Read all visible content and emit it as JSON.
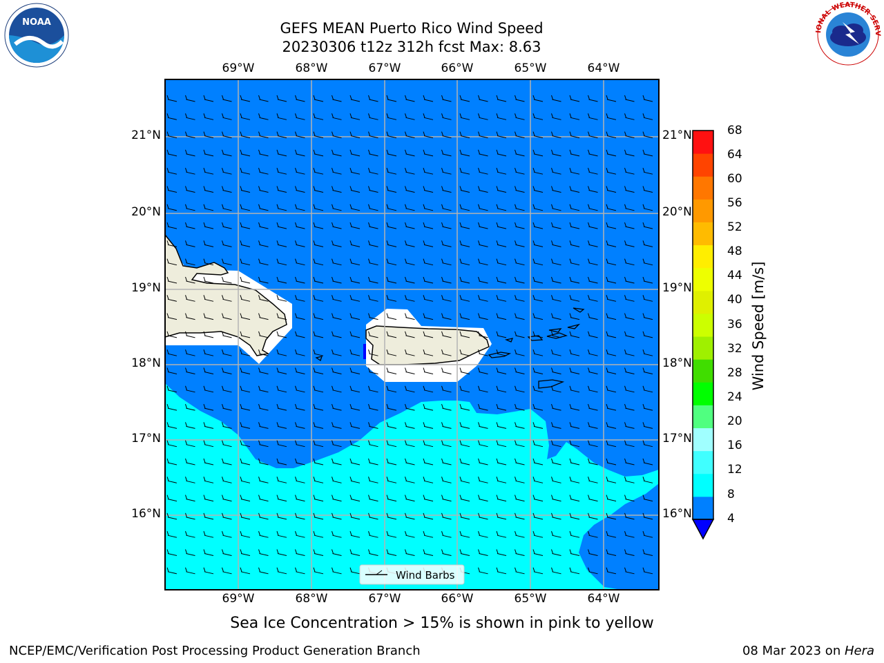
{
  "header": {
    "title_line1": "GEFS MEAN Puerto Rico Wind Speed",
    "title_line2": "20230306 t12z 312h fcst   Max: 8.63"
  },
  "logos": {
    "left_text": "NOAA",
    "right_text": "NATIONAL WEATHER SERVICE"
  },
  "map": {
    "lon_ticks": [
      "69°W",
      "68°W",
      "67°W",
      "66°W",
      "65°W",
      "64°W"
    ],
    "lat_ticks": [
      "21°N",
      "20°N",
      "19°N",
      "18°N",
      "17°N",
      "16°N"
    ],
    "legend_label": "Wind Barbs",
    "colors": {
      "ocean_4_8": "#0080ff",
      "ocean_8_12": "#00ffff",
      "land": "#eeeddc",
      "mask": "#ffffff",
      "grid": "#b3b3b3"
    }
  },
  "colorbar": {
    "label": "Wind Speed [m/s]",
    "ticks": [
      "68",
      "64",
      "60",
      "56",
      "52",
      "48",
      "44",
      "40",
      "36",
      "32",
      "28",
      "24",
      "20",
      "16",
      "12",
      "8",
      "4"
    ],
    "colors_bottom_to_top": [
      "#0080ff",
      "#00ffff",
      "#40ffff",
      "#a0ffff",
      "#50ff80",
      "#00ff00",
      "#40dd00",
      "#9ff000",
      "#ccff00",
      "#dff000",
      "#eeff00",
      "#ffee00",
      "#ffbb00",
      "#ff9900",
      "#ff7700",
      "#ff4400",
      "#ff1111"
    ],
    "extend_color": "#0000ff"
  },
  "footer": {
    "note": "Sea Ice Concentration > 15% is shown in pink to yellow",
    "left": "NCEP/EMC/Verification Post Processing Product Generation Branch",
    "date": "08 Mar 2023 on ",
    "machine": "Hera"
  }
}
